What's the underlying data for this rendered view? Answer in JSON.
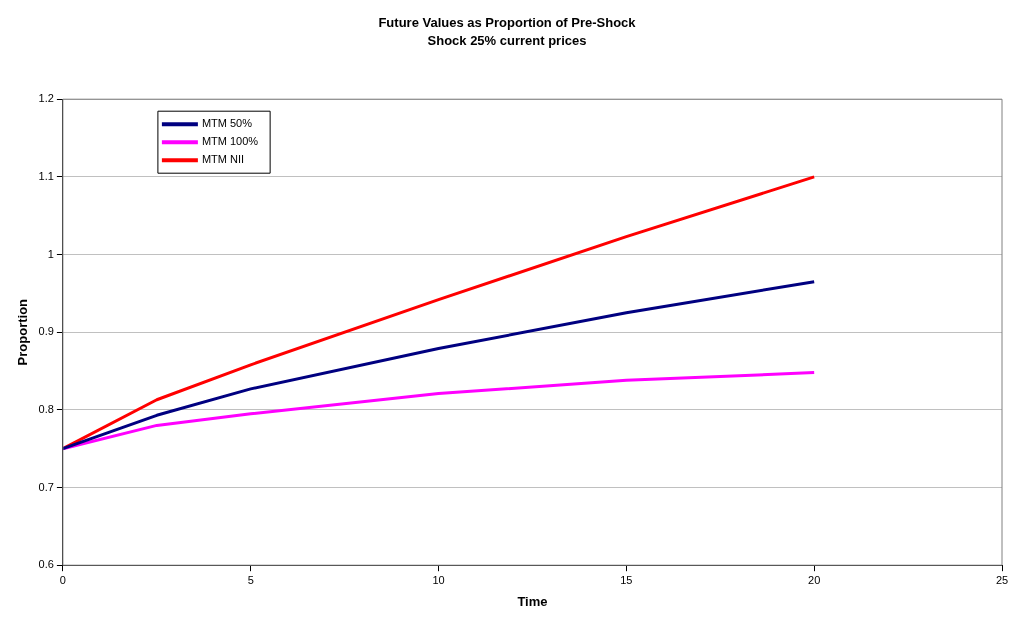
{
  "chart_data": {
    "type": "line",
    "title": "Future Values as Proportion of Pre-Shock",
    "subtitle": "Shock 25% current prices",
    "xlabel": "Time",
    "ylabel": "Proportion",
    "xlim": [
      0,
      25
    ],
    "xticks": [
      0,
      5,
      10,
      15,
      20,
      25
    ],
    "ylim": [
      0.6,
      1.2
    ],
    "yticks": [
      0.6,
      0.7,
      0.8,
      0.9,
      1,
      1.1,
      1.2
    ],
    "grid": "y",
    "legend": "top left",
    "marker": "none",
    "series": [
      {
        "name": "MTM 50%",
        "color": "#000080",
        "x": [
          0,
          2.5,
          5,
          10,
          15,
          20
        ],
        "values": [
          0.75,
          0.793,
          0.827,
          0.879,
          0.925,
          0.965
        ]
      },
      {
        "name": "MTM 100%",
        "color": "#ff00ff",
        "x": [
          0,
          2.5,
          5,
          10,
          15,
          20
        ],
        "values": [
          0.75,
          0.78,
          0.795,
          0.821,
          0.838,
          0.848
        ]
      },
      {
        "name": "MTM NII",
        "color": "#ff0000",
        "x": [
          0,
          2.5,
          5,
          10,
          15,
          20
        ],
        "values": [
          0.75,
          0.813,
          0.858,
          0.942,
          1.023,
          1.1
        ]
      }
    ]
  }
}
